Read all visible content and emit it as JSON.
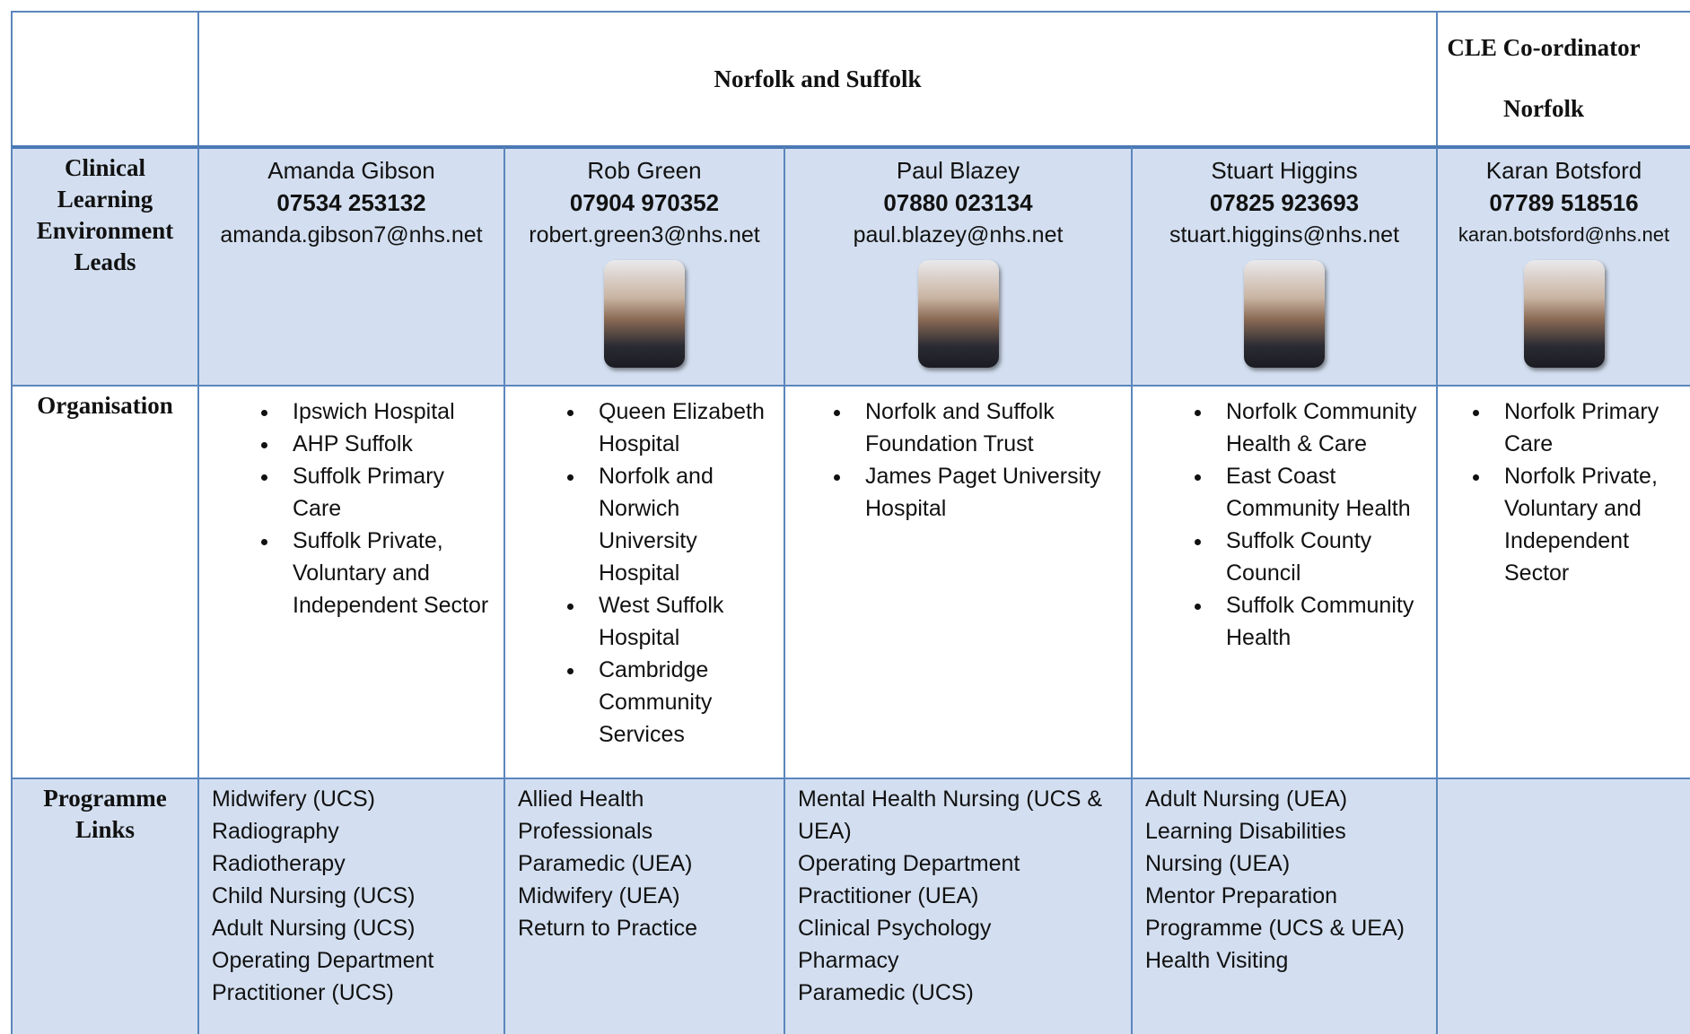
{
  "header": {
    "title": "Norfolk and Suffolk",
    "coordinator_title": "CLE Co-ordinator",
    "coordinator_region": "Norfolk"
  },
  "row_labels": [
    "Clinical Learning Environment Leads",
    "Organisation",
    "Programme Links"
  ],
  "leads": [
    {
      "name": "Amanda Gibson",
      "phone": "07534 253132",
      "email": "amanda.gibson7@nhs.net",
      "photo": false,
      "organisations": [
        "Ipswich Hospital",
        "AHP Suffolk",
        "Suffolk Primary Care",
        "Suffolk Private, Voluntary and Independent Sector"
      ],
      "programmes": [
        "Midwifery (UCS)",
        "Radiography",
        "Radiotherapy",
        "Child Nursing (UCS)",
        "Adult Nursing (UCS)",
        "Operating Department Practitioner (UCS)"
      ]
    },
    {
      "name": "Rob Green",
      "phone": "07904 970352",
      "email": "robert.green3@nhs.net",
      "photo": true,
      "organisations": [
        "Queen Elizabeth Hospital",
        "Norfolk and Norwich University Hospital",
        "West Suffolk Hospital",
        "Cambridge Community Services"
      ],
      "programmes": [
        "Allied Health Professionals",
        "Paramedic (UEA)",
        "Midwifery (UEA)",
        "Return to Practice"
      ]
    },
    {
      "name": "Paul Blazey",
      "phone": "07880 023134",
      "email": "paul.blazey@nhs.net",
      "photo": true,
      "organisations": [
        "Norfolk and Suffolk Foundation Trust",
        "James Paget University Hospital"
      ],
      "programmes": [
        "Mental Health Nursing (UCS & UEA)",
        "Operating Department Practitioner (UEA)",
        "Clinical Psychology",
        "Pharmacy",
        "Paramedic (UCS)"
      ]
    },
    {
      "name": "Stuart Higgins",
      "phone": "07825 923693",
      "email": "stuart.higgins@nhs.net",
      "photo": true,
      "organisations": [
        "Norfolk Community Health & Care",
        "East Coast Community Health",
        "Suffolk County Council",
        "Suffolk Community Health"
      ],
      "programmes": [
        "Adult Nursing (UEA)",
        "Learning Disabilities Nursing (UEA)",
        "Mentor Preparation Programme (UCS & UEA)",
        "Health Visiting"
      ]
    },
    {
      "name": "Karan Botsford",
      "phone": "07789 518516",
      "email": "karan.botsford@nhs.net",
      "photo": true,
      "organisations": [
        "Norfolk Primary Care",
        "Norfolk Private, Voluntary and Independent Sector"
      ],
      "programmes": []
    }
  ]
}
